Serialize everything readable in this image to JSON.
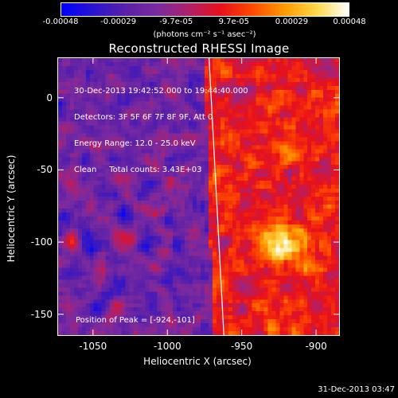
{
  "colorbar": {
    "ticks": [
      "-0.00048",
      "-0.00029",
      "-9.7e-05",
      "9.7e-05",
      "0.00029",
      "0.00048"
    ],
    "units": "(photons cm⁻² s⁻¹ asec⁻²)",
    "colormap": [
      "#0000ff",
      "#2a14d0",
      "#5a1fa8",
      "#7a2aa0",
      "#b0206a",
      "#e8101a",
      "#ff4a00",
      "#ff9a00",
      "#ffd84a",
      "#ffffff"
    ]
  },
  "title": "Reconstructed RHESSI Image",
  "info_lines": [
    "30-Dec-2013 19:42:52.000 to 19:44:40.000",
    "Detectors: 3F 5F 6F 7F 8F 9F, Att 0",
    "Energy Range: 12.0 - 25.0 keV",
    "Clean     Total counts: 3.43E+03"
  ],
  "peak_text": "Position of Peak = [-924,-101]",
  "timestamp": "31-Dec-2013 03:47",
  "axes": {
    "xlabel": "Heliocentric X (arcsec)",
    "ylabel": "Heliocentric Y (arcsec)",
    "xticks": [
      "-1050",
      "-1000",
      "-950",
      "-900"
    ],
    "yticks": [
      "0",
      "-50",
      "-100",
      "-150"
    ],
    "xlim": [
      -1074,
      -884
    ],
    "ylim": [
      -165,
      28
    ]
  },
  "chart_data": {
    "type": "heatmap",
    "title": "Reconstructed RHESSI Image",
    "xlabel": "Heliocentric X (arcsec)",
    "ylabel": "Heliocentric Y (arcsec)",
    "xlim": [
      -1074,
      -884
    ],
    "ylim": [
      -165,
      28
    ],
    "value_range": [
      -0.00048,
      0.00048
    ],
    "peak": [
      -924,
      -101
    ],
    "limb_line": [
      [
        -972,
        28
      ],
      [
        -962,
        -165
      ]
    ]
  }
}
